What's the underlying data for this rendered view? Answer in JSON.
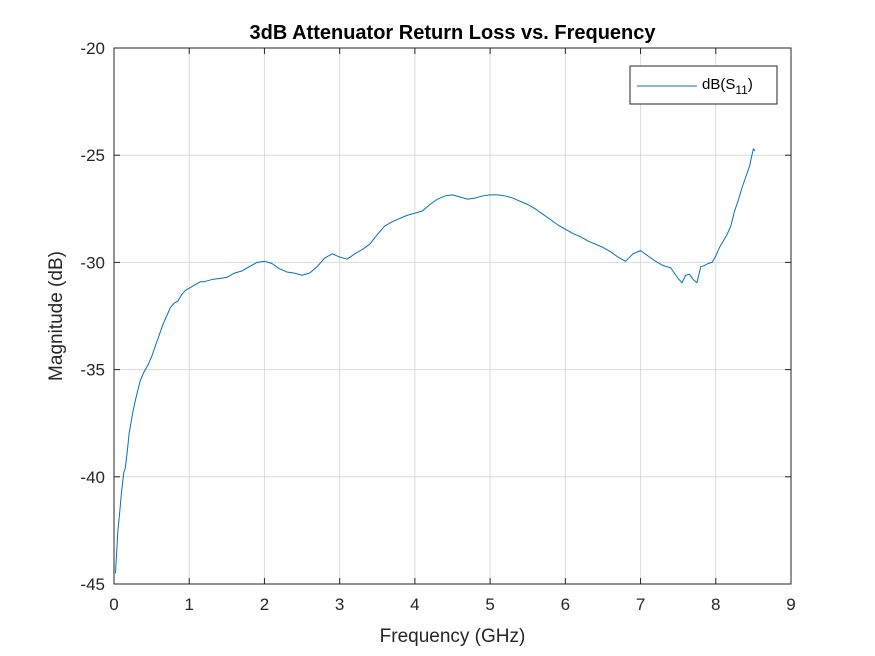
{
  "chart_data": {
    "type": "line",
    "title": "3dB Attenuator Return Loss vs. Frequency",
    "xlabel": "Frequency (GHz)",
    "ylabel": "Magnitude (dB)",
    "xlim": [
      0,
      9
    ],
    "ylim": [
      -45,
      -20
    ],
    "xticks": [
      0,
      1,
      2,
      3,
      4,
      5,
      6,
      7,
      8,
      9
    ],
    "yticks": [
      -45,
      -40,
      -35,
      -30,
      -25,
      -20
    ],
    "grid": true,
    "legend_position": "top-right",
    "colors": {
      "series": "#0072BD",
      "grid": "#DCDCDC",
      "axes": "#262626"
    },
    "legend": {
      "label_prefix": "dB(S",
      "label_subscript": "11",
      "label_suffix": ")"
    },
    "series": [
      {
        "x": [
          0.02,
          0.05,
          0.08,
          0.1,
          0.13,
          0.15,
          0.18,
          0.2,
          0.23,
          0.25,
          0.28,
          0.3,
          0.35,
          0.4,
          0.45,
          0.5,
          0.55,
          0.6,
          0.65,
          0.7,
          0.75,
          0.8,
          0.85,
          0.9,
          0.95,
          1.0,
          1.05,
          1.1,
          1.15,
          1.2,
          1.3,
          1.4,
          1.5,
          1.6,
          1.7,
          1.8,
          1.9,
          2.0,
          2.1,
          2.2,
          2.3,
          2.4,
          2.5,
          2.6,
          2.7,
          2.8,
          2.9,
          3.0,
          3.1,
          3.2,
          3.3,
          3.4,
          3.5,
          3.6,
          3.7,
          3.8,
          3.9,
          4.0,
          4.1,
          4.2,
          4.3,
          4.4,
          4.5,
          4.6,
          4.7,
          4.8,
          4.9,
          5.0,
          5.1,
          5.2,
          5.3,
          5.4,
          5.5,
          5.6,
          5.7,
          5.8,
          5.9,
          6.0,
          6.1,
          6.2,
          6.3,
          6.4,
          6.5,
          6.6,
          6.7,
          6.8,
          6.9,
          7.0,
          7.1,
          7.2,
          7.3,
          7.4,
          7.5,
          7.55,
          7.6,
          7.65,
          7.7,
          7.75,
          7.8,
          7.85,
          7.9,
          7.95,
          8.0,
          8.05,
          8.1,
          8.15,
          8.2,
          8.25,
          8.3,
          8.35,
          8.4,
          8.45,
          8.48,
          8.5,
          8.52
        ],
        "y": [
          -44.5,
          -42.6,
          -41.5,
          -40.7,
          -39.8,
          -39.6,
          -38.7,
          -38.0,
          -37.4,
          -37.0,
          -36.5,
          -36.2,
          -35.5,
          -35.1,
          -34.8,
          -34.4,
          -33.9,
          -33.4,
          -32.9,
          -32.5,
          -32.1,
          -31.9,
          -31.8,
          -31.5,
          -31.3,
          -31.2,
          -31.1,
          -31.0,
          -30.9,
          -30.9,
          -30.8,
          -30.75,
          -30.7,
          -30.5,
          -30.4,
          -30.2,
          -30.0,
          -29.95,
          -30.05,
          -30.3,
          -30.45,
          -30.5,
          -30.6,
          -30.5,
          -30.2,
          -29.8,
          -29.6,
          -29.75,
          -29.85,
          -29.6,
          -29.4,
          -29.15,
          -28.7,
          -28.3,
          -28.1,
          -27.95,
          -27.8,
          -27.7,
          -27.6,
          -27.3,
          -27.05,
          -26.9,
          -26.85,
          -26.95,
          -27.05,
          -27.0,
          -26.9,
          -26.85,
          -26.85,
          -26.9,
          -27.0,
          -27.15,
          -27.3,
          -27.5,
          -27.75,
          -28.0,
          -28.25,
          -28.45,
          -28.65,
          -28.8,
          -29.0,
          -29.15,
          -29.3,
          -29.5,
          -29.75,
          -29.95,
          -29.6,
          -29.45,
          -29.7,
          -29.95,
          -30.15,
          -30.25,
          -30.75,
          -30.95,
          -30.6,
          -30.55,
          -30.8,
          -30.95,
          -30.2,
          -30.15,
          -30.05,
          -30.0,
          -29.7,
          -29.3,
          -29.0,
          -28.7,
          -28.3,
          -27.6,
          -27.1,
          -26.5,
          -26.0,
          -25.5,
          -25.0,
          -24.7,
          -24.8
        ]
      }
    ]
  }
}
